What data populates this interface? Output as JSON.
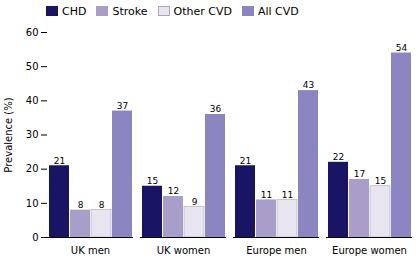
{
  "chart_data": {
    "type": "bar",
    "categories": [
      "UK men",
      "UK women",
      "Europe men",
      "Europe women"
    ],
    "series": [
      {
        "name": "CHD",
        "color": "#1a1464",
        "values": [
          21,
          15,
          21,
          22
        ]
      },
      {
        "name": "Stroke",
        "color": "#a89ec9",
        "values": [
          8,
          12,
          11,
          17
        ]
      },
      {
        "name": "Other CVD",
        "color": "#e8e4f0",
        "values": [
          8,
          9,
          11,
          15
        ]
      },
      {
        "name": "All CVD",
        "color": "#8b85c1",
        "values": [
          37,
          36,
          43,
          54
        ]
      }
    ],
    "ylabel": "Prevalence (%)",
    "ylim": [
      0,
      60
    ],
    "yticks": [
      0,
      10,
      20,
      30,
      40,
      50,
      60
    ],
    "data_labels": true,
    "legend": "upper left",
    "grid": false
  }
}
